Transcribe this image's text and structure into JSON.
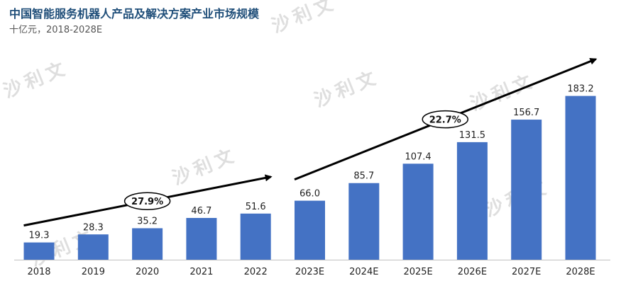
{
  "header": {
    "title": "中国智能服务机器人产品及解决方案产业市场规模",
    "subtitle": "十亿元，2018-2028E"
  },
  "watermark": {
    "text": "沙利文"
  },
  "chart_data": {
    "type": "bar",
    "categories": [
      "2018",
      "2019",
      "2020",
      "2021",
      "2022",
      "2023E",
      "2024E",
      "2025E",
      "2026E",
      "2027E",
      "2028E"
    ],
    "values": [
      19.3,
      28.3,
      35.2,
      46.7,
      51.6,
      66.0,
      85.7,
      107.4,
      131.5,
      156.7,
      183.2
    ],
    "value_labels": [
      "19.3",
      "28.3",
      "35.2",
      "46.7",
      "51.6",
      "66.0",
      "85.7",
      "107.4",
      "131.5",
      "156.7",
      "183.2"
    ],
    "title": "中国智能服务机器人产品及解决方案产业市场规模",
    "subtitle": "十亿元，2018-2028E",
    "ylim": [
      0,
      190
    ],
    "grid": false,
    "bar_color": "#4472c4",
    "annotations": [
      {
        "label": "27.9%",
        "from_category": "2018",
        "to_category": "2022"
      },
      {
        "label": "22.7%",
        "from_category": "2023E",
        "to_category": "2028E"
      }
    ]
  }
}
